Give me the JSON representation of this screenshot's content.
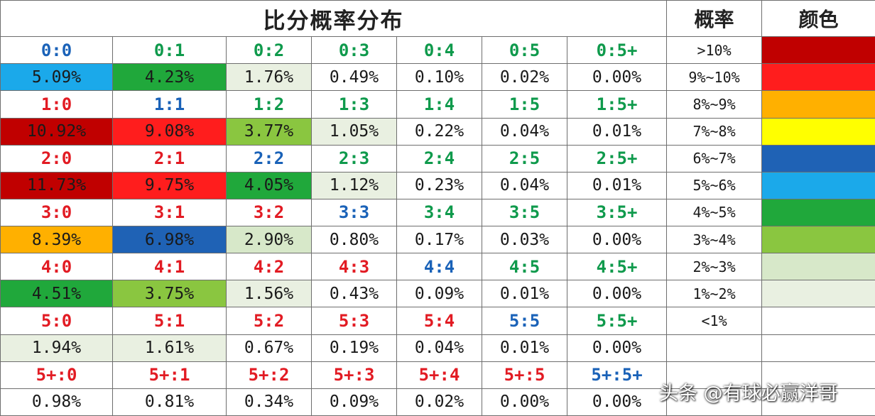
{
  "header": {
    "title": "比分概率分布",
    "prob_header": "概率",
    "color_header": "颜色"
  },
  "colors": {
    "score_red": "#e21b23",
    "score_green": "#0f9a4c",
    "score_blue": "#1a62b8",
    "band_gt10": "#c00000",
    "band_9_10": "#ff1d1d",
    "band_8_9": "#ffb000",
    "band_7_8": "#ffff00",
    "band_6_7": "#1f62b5",
    "band_5_6": "#1ba9ea",
    "band_4_5": "#20a83b",
    "band_3_4": "#8ac640",
    "band_2_3": "#d7e8c9",
    "band_1_2": "#e9f0e1",
    "band_lt1": "#ffffff"
  },
  "rows": [
    {
      "scores": [
        {
          "text": "0:0",
          "color": "#1a62b8"
        },
        {
          "text": "0:1",
          "color": "#0f9a4c"
        },
        {
          "text": "0:2",
          "color": "#0f9a4c"
        },
        {
          "text": "0:3",
          "color": "#0f9a4c"
        },
        {
          "text": "0:4",
          "color": "#0f9a4c"
        },
        {
          "text": "0:5",
          "color": "#0f9a4c"
        },
        {
          "text": "0:5+",
          "color": "#0f9a4c"
        }
      ],
      "probs": [
        {
          "text": "5.09%",
          "bg": "#1ba9ea"
        },
        {
          "text": "4.23%",
          "bg": "#20a83b"
        },
        {
          "text": "1.76%",
          "bg": "#e9f0e1"
        },
        {
          "text": "0.49%",
          "bg": "#ffffff"
        },
        {
          "text": "0.10%",
          "bg": "#ffffff"
        },
        {
          "text": "0.02%",
          "bg": "#ffffff"
        },
        {
          "text": "0.00%",
          "bg": "#ffffff"
        }
      ]
    },
    {
      "scores": [
        {
          "text": "1:0",
          "color": "#e21b23"
        },
        {
          "text": "1:1",
          "color": "#1a62b8"
        },
        {
          "text": "1:2",
          "color": "#0f9a4c"
        },
        {
          "text": "1:3",
          "color": "#0f9a4c"
        },
        {
          "text": "1:4",
          "color": "#0f9a4c"
        },
        {
          "text": "1:5",
          "color": "#0f9a4c"
        },
        {
          "text": "1:5+",
          "color": "#0f9a4c"
        }
      ],
      "probs": [
        {
          "text": "10.92%",
          "bg": "#c00000"
        },
        {
          "text": "9.08%",
          "bg": "#ff1d1d"
        },
        {
          "text": "3.77%",
          "bg": "#8ac640"
        },
        {
          "text": "1.05%",
          "bg": "#e9f0e1"
        },
        {
          "text": "0.22%",
          "bg": "#ffffff"
        },
        {
          "text": "0.04%",
          "bg": "#ffffff"
        },
        {
          "text": "0.01%",
          "bg": "#ffffff"
        }
      ]
    },
    {
      "scores": [
        {
          "text": "2:0",
          "color": "#e21b23"
        },
        {
          "text": "2:1",
          "color": "#e21b23"
        },
        {
          "text": "2:2",
          "color": "#1a62b8"
        },
        {
          "text": "2:3",
          "color": "#0f9a4c"
        },
        {
          "text": "2:4",
          "color": "#0f9a4c"
        },
        {
          "text": "2:5",
          "color": "#0f9a4c"
        },
        {
          "text": "2:5+",
          "color": "#0f9a4c"
        }
      ],
      "probs": [
        {
          "text": "11.73%",
          "bg": "#c00000"
        },
        {
          "text": "9.75%",
          "bg": "#ff1d1d"
        },
        {
          "text": "4.05%",
          "bg": "#20a83b"
        },
        {
          "text": "1.12%",
          "bg": "#e9f0e1"
        },
        {
          "text": "0.23%",
          "bg": "#ffffff"
        },
        {
          "text": "0.04%",
          "bg": "#ffffff"
        },
        {
          "text": "0.01%",
          "bg": "#ffffff"
        }
      ]
    },
    {
      "scores": [
        {
          "text": "3:0",
          "color": "#e21b23"
        },
        {
          "text": "3:1",
          "color": "#e21b23"
        },
        {
          "text": "3:2",
          "color": "#e21b23"
        },
        {
          "text": "3:3",
          "color": "#1a62b8"
        },
        {
          "text": "3:4",
          "color": "#0f9a4c"
        },
        {
          "text": "3:5",
          "color": "#0f9a4c"
        },
        {
          "text": "3:5+",
          "color": "#0f9a4c"
        }
      ],
      "probs": [
        {
          "text": "8.39%",
          "bg": "#ffb000"
        },
        {
          "text": "6.98%",
          "bg": "#1f62b5"
        },
        {
          "text": "2.90%",
          "bg": "#d7e8c9"
        },
        {
          "text": "0.80%",
          "bg": "#ffffff"
        },
        {
          "text": "0.17%",
          "bg": "#ffffff"
        },
        {
          "text": "0.03%",
          "bg": "#ffffff"
        },
        {
          "text": "0.00%",
          "bg": "#ffffff"
        }
      ]
    },
    {
      "scores": [
        {
          "text": "4:0",
          "color": "#e21b23"
        },
        {
          "text": "4:1",
          "color": "#e21b23"
        },
        {
          "text": "4:2",
          "color": "#e21b23"
        },
        {
          "text": "4:3",
          "color": "#e21b23"
        },
        {
          "text": "4:4",
          "color": "#1a62b8"
        },
        {
          "text": "4:5",
          "color": "#0f9a4c"
        },
        {
          "text": "4:5+",
          "color": "#0f9a4c"
        }
      ],
      "probs": [
        {
          "text": "4.51%",
          "bg": "#20a83b"
        },
        {
          "text": "3.75%",
          "bg": "#8ac640"
        },
        {
          "text": "1.56%",
          "bg": "#e9f0e1"
        },
        {
          "text": "0.43%",
          "bg": "#ffffff"
        },
        {
          "text": "0.09%",
          "bg": "#ffffff"
        },
        {
          "text": "0.01%",
          "bg": "#ffffff"
        },
        {
          "text": "0.00%",
          "bg": "#ffffff"
        }
      ]
    },
    {
      "scores": [
        {
          "text": "5:0",
          "color": "#e21b23"
        },
        {
          "text": "5:1",
          "color": "#e21b23"
        },
        {
          "text": "5:2",
          "color": "#e21b23"
        },
        {
          "text": "5:3",
          "color": "#e21b23"
        },
        {
          "text": "5:4",
          "color": "#e21b23"
        },
        {
          "text": "5:5",
          "color": "#1a62b8"
        },
        {
          "text": "5:5+",
          "color": "#0f9a4c"
        }
      ],
      "probs": [
        {
          "text": "1.94%",
          "bg": "#e9f0e1"
        },
        {
          "text": "1.61%",
          "bg": "#e9f0e1"
        },
        {
          "text": "0.67%",
          "bg": "#ffffff"
        },
        {
          "text": "0.19%",
          "bg": "#ffffff"
        },
        {
          "text": "0.04%",
          "bg": "#ffffff"
        },
        {
          "text": "0.01%",
          "bg": "#ffffff"
        },
        {
          "text": "0.00%",
          "bg": "#ffffff"
        }
      ]
    },
    {
      "scores": [
        {
          "text": "5+:0",
          "color": "#e21b23"
        },
        {
          "text": "5+:1",
          "color": "#e21b23"
        },
        {
          "text": "5+:2",
          "color": "#e21b23"
        },
        {
          "text": "5+:3",
          "color": "#e21b23"
        },
        {
          "text": "5+:4",
          "color": "#e21b23"
        },
        {
          "text": "5+:5",
          "color": "#e21b23"
        },
        {
          "text": "5+:5+",
          "color": "#1a62b8"
        }
      ],
      "probs": [
        {
          "text": "0.98%",
          "bg": "#ffffff"
        },
        {
          "text": "0.81%",
          "bg": "#ffffff"
        },
        {
          "text": "0.34%",
          "bg": "#ffffff"
        },
        {
          "text": "0.09%",
          "bg": "#ffffff"
        },
        {
          "text": "0.02%",
          "bg": "#ffffff"
        },
        {
          "text": "0.00%",
          "bg": "#ffffff"
        },
        {
          "text": "0.00%",
          "bg": "#ffffff"
        }
      ]
    }
  ],
  "legend": [
    {
      "label": ">10%",
      "color": "#c00000"
    },
    {
      "label": "9%~10%",
      "color": "#ff1d1d"
    },
    {
      "label": "8%~9%",
      "color": "#ffb000"
    },
    {
      "label": "7%~8%",
      "color": "#ffff00"
    },
    {
      "label": "6%~7%",
      "color": "#1f62b5"
    },
    {
      "label": "5%~6%",
      "color": "#1ba9ea"
    },
    {
      "label": "4%~5%",
      "color": "#20a83b"
    },
    {
      "label": "3%~4%",
      "color": "#8ac640"
    },
    {
      "label": "2%~3%",
      "color": "#d7e8c9"
    },
    {
      "label": "1%~2%",
      "color": "#e9f0e1"
    },
    {
      "label": "<1%",
      "color": "#ffffff"
    },
    {
      "label": "",
      "color": "#ffffff"
    },
    {
      "label": "",
      "color": "#ffffff"
    },
    {
      "label": "",
      "color": "#ffffff"
    }
  ],
  "watermark": "头条 @有球必赢洋哥"
}
